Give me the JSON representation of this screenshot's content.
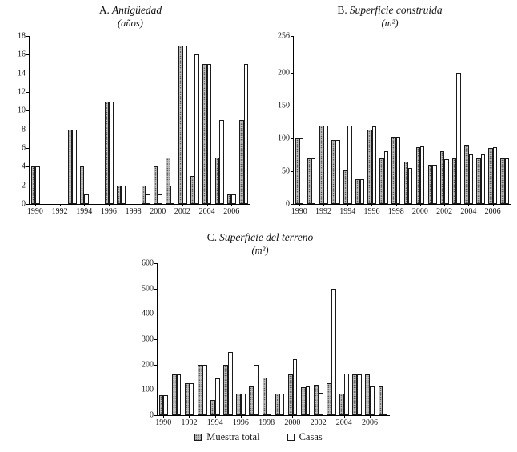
{
  "chart_data": [
    {
      "id": "A",
      "type": "bar",
      "title_prefix": "A.",
      "title": "Antigüedad",
      "subtitle": "(años)",
      "categories": [
        "1990",
        "1991",
        "1992",
        "1993",
        "1994",
        "1995",
        "1996",
        "1997",
        "1998",
        "1999",
        "2000",
        "2001",
        "2002",
        "2003",
        "2004",
        "2005",
        "2006",
        "2007"
      ],
      "series": [
        {
          "name": "Muestra total",
          "values": [
            4,
            0,
            0,
            8,
            4,
            0,
            11,
            2,
            0,
            2,
            4,
            5,
            17,
            3,
            15,
            5,
            1,
            9
          ]
        },
        {
          "name": "Casas",
          "values": [
            4,
            0,
            0,
            8,
            1,
            0,
            11,
            2,
            0,
            1,
            1,
            2,
            17,
            16,
            15,
            9,
            1,
            15
          ]
        }
      ],
      "ylim": [
        0,
        18
      ],
      "yticks": [
        0,
        2,
        4,
        6,
        8,
        10,
        12,
        14,
        16,
        18
      ],
      "xtick_labels": [
        "1990",
        "1992",
        "1994",
        "1996",
        "1998",
        "2000",
        "2002",
        "2004",
        "2006"
      ],
      "legend_position": "none",
      "grid": false
    },
    {
      "id": "B",
      "type": "bar",
      "title_prefix": "B.",
      "title": "Superficie construida",
      "subtitle": "(m²)",
      "categories": [
        "1990",
        "1991",
        "1992",
        "1993",
        "1994",
        "1995",
        "1996",
        "1997",
        "1998",
        "1999",
        "2000",
        "2001",
        "2002",
        "2003",
        "2004",
        "2005",
        "2006",
        "2007"
      ],
      "series": [
        {
          "name": "Muestra total",
          "values": [
            100,
            70,
            120,
            97,
            51,
            38,
            113,
            70,
            103,
            65,
            87,
            60,
            80,
            70,
            90,
            70,
            85,
            70
          ]
        },
        {
          "name": "Casas",
          "values": [
            100,
            70,
            120,
            97,
            119,
            38,
            118,
            80,
            103,
            55,
            88,
            60,
            68,
            200,
            75,
            75,
            86,
            70
          ]
        }
      ],
      "ylim": [
        0,
        256
      ],
      "yticks": [
        0,
        50,
        100,
        150,
        200,
        256
      ],
      "xtick_labels": [
        "1990",
        "1992",
        "1994",
        "1996",
        "1998",
        "2000",
        "2002",
        "2004",
        "2006"
      ],
      "legend_position": "none",
      "grid": false
    },
    {
      "id": "C",
      "type": "bar",
      "title_prefix": "C.",
      "title": "Superficie del terreno",
      "subtitle": "(m²)",
      "categories": [
        "1990",
        "1991",
        "1992",
        "1993",
        "1994",
        "1995",
        "1996",
        "1997",
        "1998",
        "1999",
        "2000",
        "2001",
        "2002",
        "2003",
        "2004",
        "2005",
        "2006",
        "2007"
      ],
      "series": [
        {
          "name": "Muestra total",
          "values": [
            80,
            160,
            125,
            200,
            60,
            200,
            85,
            115,
            150,
            85,
            160,
            110,
            120,
            125,
            85,
            160,
            160,
            115
          ]
        },
        {
          "name": "Casas",
          "values": [
            80,
            160,
            125,
            200,
            145,
            250,
            85,
            200,
            150,
            85,
            220,
            115,
            90,
            500,
            165,
            160,
            115,
            165
          ]
        }
      ],
      "ylim": [
        0,
        600
      ],
      "yticks": [
        0,
        100,
        200,
        300,
        400,
        500,
        600
      ],
      "xtick_labels": [
        "1990",
        "1992",
        "1994",
        "1996",
        "1998",
        "2000",
        "2002",
        "2004",
        "2006"
      ],
      "legend_position": "bottom",
      "grid": false
    }
  ],
  "legend": {
    "items": [
      {
        "label": "Muestra total",
        "swatch": "muestra"
      },
      {
        "label": "Casas",
        "swatch": "casas"
      }
    ]
  },
  "colors": {
    "muestra_fill": "#c2c2c2",
    "muestra_dot": "#4a4a4a",
    "casas_fill": "#ffffff",
    "axis": "#000000"
  }
}
